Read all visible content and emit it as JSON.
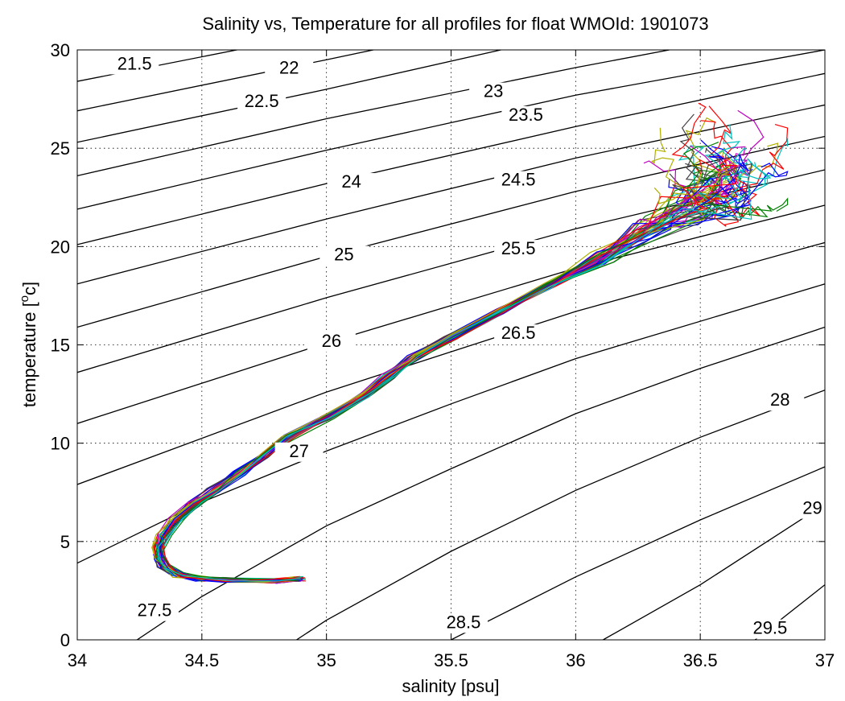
{
  "chart_data": {
    "type": "line",
    "title": "Salinity vs, Temperature for all profiles for float WMOId: 1901073",
    "xlabel": "salinity [psu]",
    "ylabel_main": "temperature [",
    "ylabel_sup": "o",
    "ylabel_end": "c]",
    "xlim": [
      34,
      37
    ],
    "ylim": [
      0,
      30
    ],
    "grid": true,
    "xticks": [
      {
        "value": 34,
        "label": "34"
      },
      {
        "value": 34.5,
        "label": "34.5"
      },
      {
        "value": 35,
        "label": "35"
      },
      {
        "value": 35.5,
        "label": "35.5"
      },
      {
        "value": 36,
        "label": "36"
      },
      {
        "value": 36.5,
        "label": "36.5"
      },
      {
        "value": 37,
        "label": "37"
      }
    ],
    "yticks": [
      {
        "value": 0,
        "label": "0"
      },
      {
        "value": 5,
        "label": "5"
      },
      {
        "value": 10,
        "label": "10"
      },
      {
        "value": 15,
        "label": "15"
      },
      {
        "value": 20,
        "label": "20"
      },
      {
        "value": 25,
        "label": "25"
      },
      {
        "value": 30,
        "label": "30"
      }
    ],
    "density_contours": [
      {
        "label": "21.5",
        "label_at": [
          34.23,
          29.0
        ],
        "points": [
          [
            34,
            28.4
          ],
          [
            35,
            30.9
          ]
        ]
      },
      {
        "label": "22",
        "label_at": [
          34.85,
          28.8
        ],
        "points": [
          [
            34,
            26.9
          ],
          [
            35,
            29.5
          ],
          [
            35.3,
            30.3
          ]
        ]
      },
      {
        "label": "22.5",
        "label_at": [
          34.74,
          27.1
        ],
        "points": [
          [
            34,
            25.3
          ],
          [
            35,
            28.0
          ],
          [
            35.7,
            30.0
          ]
        ]
      },
      {
        "label": "23",
        "label_at": [
          35.67,
          27.6
        ],
        "points": [
          [
            34,
            23.6
          ],
          [
            35,
            26.5
          ],
          [
            36,
            29.1
          ],
          [
            36.5,
            30.3
          ]
        ]
      },
      {
        "label": "23.5",
        "label_at": [
          35.8,
          26.4
        ],
        "points": [
          [
            34,
            21.9
          ],
          [
            35,
            24.9
          ],
          [
            36,
            27.7
          ],
          [
            37,
            30.0
          ]
        ]
      },
      {
        "label": "24",
        "label_at": [
          35.1,
          23.0
        ],
        "points": [
          [
            34,
            20.1
          ],
          [
            35,
            23.2
          ],
          [
            36,
            26.1
          ],
          [
            37,
            28.8
          ]
        ]
      },
      {
        "label": "24.5",
        "label_at": [
          35.77,
          23.1
        ],
        "points": [
          [
            34,
            18.1
          ],
          [
            35,
            21.4
          ],
          [
            36,
            24.5
          ],
          [
            37,
            27.2
          ]
        ]
      },
      {
        "label": "25",
        "label_at": [
          35.07,
          19.3
        ],
        "points": [
          [
            34,
            15.9
          ],
          [
            35,
            19.5
          ],
          [
            36,
            22.8
          ],
          [
            37,
            25.6
          ]
        ]
      },
      {
        "label": "25.5",
        "label_at": [
          35.77,
          19.6
        ],
        "points": [
          [
            34,
            13.6
          ],
          [
            35,
            17.4
          ],
          [
            36,
            20.9
          ],
          [
            37,
            23.9
          ]
        ]
      },
      {
        "label": "26",
        "label_at": [
          35.02,
          14.9
        ],
        "points": [
          [
            34,
            11.0
          ],
          [
            35,
            15.1
          ],
          [
            36,
            18.9
          ],
          [
            37,
            22.1
          ]
        ]
      },
      {
        "label": "26.5",
        "label_at": [
          35.77,
          15.3
        ],
        "points": [
          [
            34,
            7.9
          ],
          [
            35,
            12.6
          ],
          [
            36,
            16.7
          ],
          [
            37,
            20.2
          ]
        ]
      },
      {
        "label": "27",
        "label_at": [
          34.89,
          9.3
        ],
        "points": [
          [
            34,
            3.9
          ],
          [
            34.5,
            7.0
          ],
          [
            35,
            9.6
          ],
          [
            35.5,
            12.0
          ],
          [
            36,
            14.3
          ],
          [
            37,
            18.1
          ]
        ]
      },
      {
        "label": "27.5",
        "label_at": [
          34.31,
          1.2
        ],
        "points": [
          [
            34.24,
            0
          ],
          [
            34.5,
            2.2
          ],
          [
            35,
            5.8
          ],
          [
            35.5,
            8.7
          ],
          [
            36,
            11.5
          ],
          [
            36.5,
            13.8
          ],
          [
            37,
            15.9
          ]
        ]
      },
      {
        "label": "28",
        "label_at": [
          36.82,
          11.9
        ],
        "points": [
          [
            34.88,
            0
          ],
          [
            35,
            1.0
          ],
          [
            35.5,
            4.5
          ],
          [
            36,
            7.6
          ],
          [
            36.5,
            10.3
          ],
          [
            37,
            12.7
          ]
        ]
      },
      {
        "label": "28.5",
        "label_at": [
          35.55,
          0.6
        ],
        "points": [
          [
            35.5,
            0
          ],
          [
            36,
            3.2
          ],
          [
            36.5,
            6.1
          ],
          [
            37,
            8.8
          ]
        ]
      },
      {
        "label": "29",
        "label_at": [
          36.95,
          6.4
        ],
        "points": [
          [
            36.11,
            0
          ],
          [
            36.5,
            2.8
          ],
          [
            37,
            6.9
          ]
        ]
      },
      {
        "label": "29.5",
        "label_at": [
          36.78,
          0.3
        ],
        "points": [
          [
            36.72,
            0
          ],
          [
            37,
            2.8
          ]
        ]
      }
    ],
    "profile_colors": [
      "#0000ff",
      "#008000",
      "#ff0000",
      "#00c0c0",
      "#c000c0",
      "#b0b000",
      "#404040"
    ],
    "mean_profile": [
      [
        34.9,
        3.1
      ],
      [
        34.8,
        3.0
      ],
      [
        34.6,
        3.05
      ],
      [
        34.5,
        3.1
      ],
      [
        34.4,
        3.3
      ],
      [
        34.35,
        3.7
      ],
      [
        34.33,
        4.2
      ],
      [
        34.33,
        4.7
      ],
      [
        34.35,
        5.3
      ],
      [
        34.4,
        6.1
      ],
      [
        34.47,
        6.9
      ],
      [
        34.55,
        7.6
      ],
      [
        34.65,
        8.5
      ],
      [
        34.75,
        9.4
      ],
      [
        34.85,
        10.3
      ],
      [
        35.0,
        11.3
      ],
      [
        35.15,
        12.4
      ],
      [
        35.25,
        13.4
      ],
      [
        35.35,
        14.4
      ],
      [
        35.5,
        15.4
      ],
      [
        35.7,
        16.7
      ],
      [
        35.9,
        18.0
      ],
      [
        36.1,
        19.3
      ],
      [
        36.3,
        20.6
      ],
      [
        36.45,
        21.6
      ],
      [
        36.55,
        22.2
      ],
      [
        36.6,
        22.6
      ]
    ]
  }
}
